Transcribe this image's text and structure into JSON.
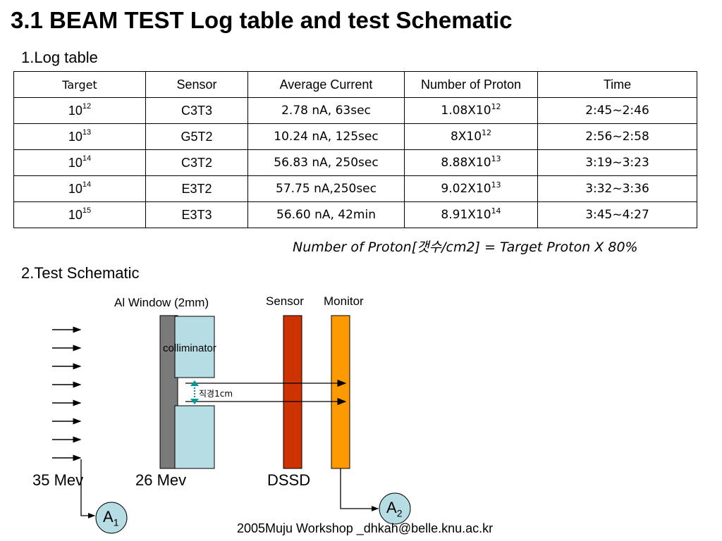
{
  "title": "3.1 BEAM TEST Log table and test Schematic",
  "section1": "1.Log table",
  "table": {
    "headers": [
      "Target",
      "Sensor",
      "Average Current",
      "Number of Proton",
      "Time"
    ],
    "rows": [
      {
        "target_base": "10",
        "target_exp": "12",
        "sensor": "C3T3",
        "current": "2.78 nA, 63sec",
        "proton_base": "1.08X10",
        "proton_exp": "12",
        "time": "2:45~2:46"
      },
      {
        "target_base": "10",
        "target_exp": "13",
        "sensor": "G5T2",
        "current": "10.24 nA, 125sec",
        "proton_base": "8X10",
        "proton_exp": "12",
        "time": "2:56~2:58"
      },
      {
        "target_base": "10",
        "target_exp": "14",
        "sensor": "C3T2",
        "current": "56.83 nA, 250sec",
        "proton_base": "8.88X10",
        "proton_exp": "13",
        "time": "3:19~3:23"
      },
      {
        "target_base": "10",
        "target_exp": "14",
        "sensor": "E3T2",
        "current": "57.75 nA,250sec",
        "proton_base": "9.02X10",
        "proton_exp": "13",
        "time": "3:32~3:36"
      },
      {
        "target_base": "10",
        "target_exp": "15",
        "sensor": "E3T3",
        "current": "56.60 nA, 42min",
        "proton_base": "8.91X10",
        "proton_exp": "14",
        "time": "3:45~4:27"
      }
    ]
  },
  "formula": "Number of Proton[갯수/cm2] = Target Proton X 80%",
  "section2": "2.Test Schematic",
  "schematic": {
    "al_window_label": "Al Window (2mm)",
    "sensor_label": "Sensor",
    "monitor_label": "Monitor",
    "collimator_label": "colliminator",
    "diameter_label": "직경1cm",
    "energy_35": "35 Mev",
    "energy_26": "26 Mev",
    "dssd_label": "DSSD",
    "a1_base": "A",
    "a1_sub": "1",
    "a2_base": "A",
    "a2_sub": "2",
    "colors": {
      "al_window": "#7a7a7a",
      "collimator": "#b7dde4",
      "sensor": "#cc3300",
      "monitor": "#ff9900",
      "marker": "#009999"
    }
  },
  "footer": "2005Muju Workshop _dhkah@belle.knu.ac.kr"
}
